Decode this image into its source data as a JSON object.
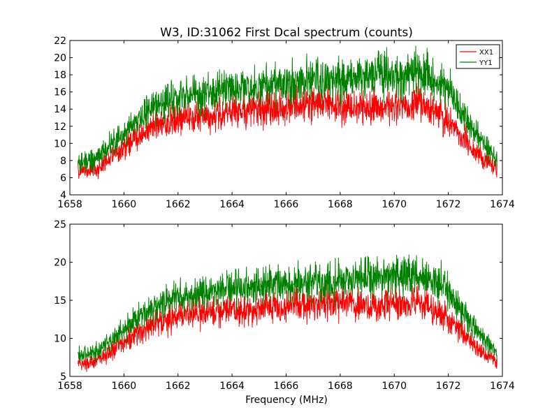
{
  "figure": {
    "title": "W3, ID:31062 First Dcal spectrum (counts)",
    "xlabel": "Frequency (MHz)"
  },
  "chart_data": [
    {
      "type": "line",
      "title": "W3, ID:31062 First Dcal spectrum (counts)",
      "xlabel": "",
      "ylabel": "",
      "xlim": [
        1658,
        1674
      ],
      "ylim": [
        4,
        22
      ],
      "xticks": [
        1658,
        1660,
        1662,
        1664,
        1666,
        1668,
        1670,
        1672,
        1674
      ],
      "yticks": [
        4,
        6,
        8,
        10,
        12,
        14,
        16,
        18,
        20,
        22
      ],
      "legend": "top-right",
      "grid": false,
      "x": [
        1658.3,
        1659.0,
        1660.0,
        1661.0,
        1662.0,
        1663.0,
        1664.0,
        1665.0,
        1666.0,
        1667.0,
        1668.0,
        1669.0,
        1670.0,
        1671.0,
        1672.0,
        1673.0,
        1673.8
      ],
      "series": [
        {
          "name": "XX1",
          "color": "#ff0000",
          "values": [
            6.8,
            7.0,
            9.5,
            11.8,
            12.9,
            13.4,
            13.7,
            14.0,
            14.3,
            14.6,
            14.5,
            14.2,
            14.5,
            14.8,
            12.5,
            9.0,
            6.9
          ]
        },
        {
          "name": "YY1",
          "color": "#008000",
          "values": [
            7.8,
            8.3,
            11.2,
            13.9,
            15.3,
            15.9,
            16.4,
            16.7,
            17.0,
            17.3,
            17.5,
            17.8,
            18.1,
            18.2,
            16.2,
            11.2,
            8.1
          ]
        }
      ]
    },
    {
      "type": "line",
      "title": "",
      "xlabel": "Frequency (MHz)",
      "ylabel": "",
      "xlim": [
        1658,
        1674
      ],
      "ylim": [
        5,
        25
      ],
      "xticks": [
        1658,
        1660,
        1662,
        1664,
        1666,
        1668,
        1670,
        1672,
        1674
      ],
      "yticks": [
        5,
        10,
        15,
        20,
        25
      ],
      "grid": false,
      "x": [
        1658.3,
        1659.0,
        1660.0,
        1661.0,
        1662.0,
        1663.0,
        1664.0,
        1665.0,
        1666.0,
        1667.0,
        1668.0,
        1669.0,
        1670.0,
        1671.0,
        1672.0,
        1673.0,
        1673.8
      ],
      "series": [
        {
          "name": "XX1",
          "color": "#ff0000",
          "values": [
            6.8,
            7.0,
            9.5,
            11.8,
            12.9,
            13.4,
            13.7,
            14.0,
            14.3,
            14.6,
            14.5,
            14.2,
            14.5,
            14.8,
            12.5,
            9.0,
            6.9
          ]
        },
        {
          "name": "YY1",
          "color": "#008000",
          "values": [
            7.8,
            8.3,
            11.2,
            13.9,
            15.3,
            15.9,
            16.4,
            16.7,
            17.0,
            17.3,
            17.5,
            17.8,
            18.1,
            18.2,
            16.2,
            11.2,
            8.1
          ]
        }
      ]
    }
  ]
}
